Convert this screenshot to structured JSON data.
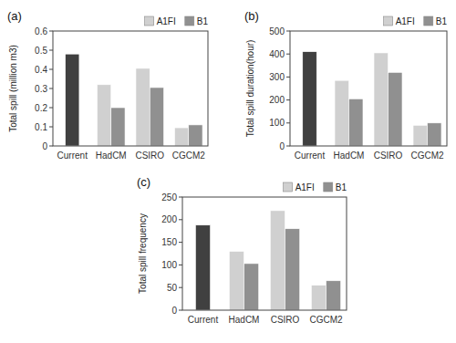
{
  "chart_data": [
    {
      "type": "bar",
      "title": "(a)",
      "ylabel": "Total spill (million m3)",
      "categories": [
        "Current",
        "HadCM",
        "CSIRO",
        "CGCM2"
      ],
      "series": [
        {
          "color": "#404040",
          "values": [
            0.48,
            null,
            null,
            null
          ]
        },
        {
          "name": "A1FI",
          "color": "#d0d0d0",
          "values": [
            null,
            0.32,
            0.405,
            0.095
          ]
        },
        {
          "name": "B1",
          "color": "#909090",
          "values": [
            null,
            0.2,
            0.305,
            0.11
          ]
        }
      ],
      "ylim": [
        0,
        0.6
      ],
      "yticks": [
        0,
        0.1,
        0.2,
        0.3,
        0.4,
        0.5,
        0.6
      ],
      "grid": false,
      "legend": "upper right"
    },
    {
      "type": "bar",
      "title": "(b)",
      "ylabel": "Total spill duration(hour)",
      "categories": [
        "Current",
        "HadCM",
        "CSIRO",
        "CGCM2"
      ],
      "series": [
        {
          "color": "#404040",
          "values": [
            410,
            null,
            null,
            null
          ]
        },
        {
          "name": "A1FI",
          "color": "#d0d0d0",
          "values": [
            null,
            285,
            405,
            90
          ]
        },
        {
          "name": "B1",
          "color": "#909090",
          "values": [
            null,
            205,
            320,
            100
          ]
        }
      ],
      "ylim": [
        0,
        500
      ],
      "yticks": [
        0,
        100,
        200,
        300,
        400,
        500
      ],
      "grid": false,
      "legend": "upper right"
    },
    {
      "type": "bar",
      "title": "(c)",
      "ylabel": "Total spill frequency",
      "categories": [
        "Current",
        "HadCM",
        "CSIRO",
        "CGCM2"
      ],
      "series": [
        {
          "color": "#404040",
          "values": [
            188,
            null,
            null,
            null
          ]
        },
        {
          "name": "A1FI",
          "color": "#d0d0d0",
          "values": [
            null,
            130,
            220,
            55
          ]
        },
        {
          "name": "B1",
          "color": "#909090",
          "values": [
            null,
            103,
            180,
            65
          ]
        }
      ],
      "ylim": [
        0,
        250
      ],
      "yticks": [
        0,
        50,
        100,
        150,
        200,
        250
      ],
      "grid": false,
      "legend": "upper right"
    }
  ]
}
